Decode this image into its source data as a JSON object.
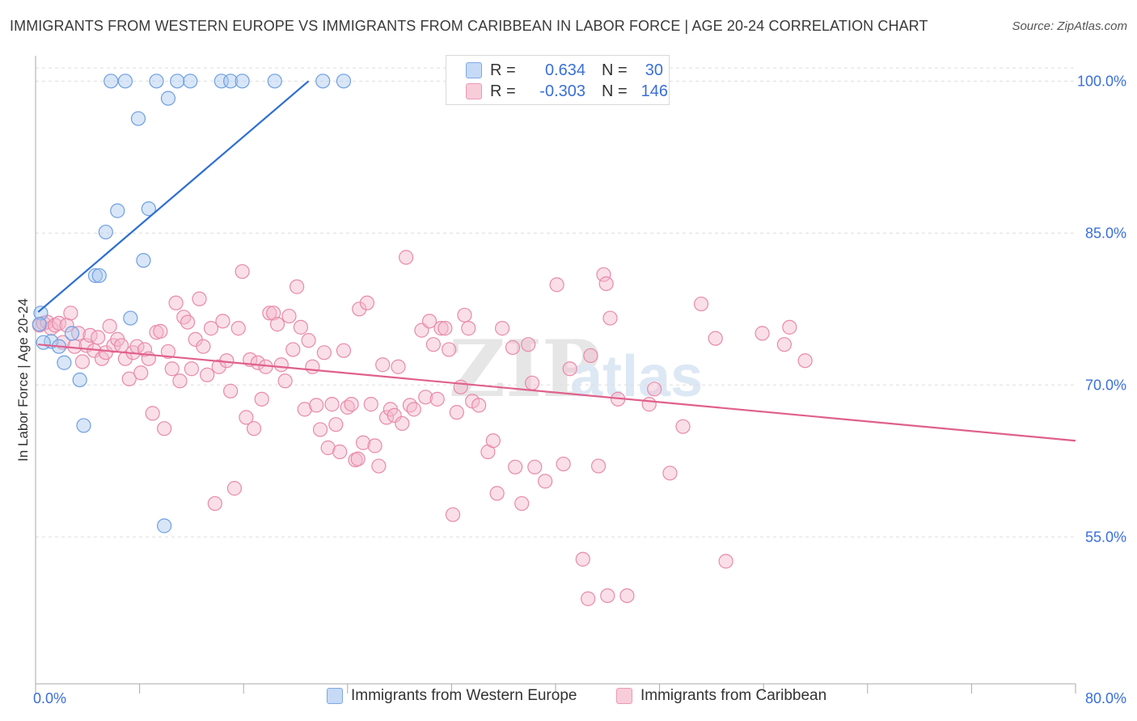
{
  "title": "IMMIGRANTS FROM WESTERN EUROPE VS IMMIGRANTS FROM CARIBBEAN IN LABOR FORCE | AGE 20-24 CORRELATION CHART",
  "source": "Source: ZipAtlas.com",
  "watermark": {
    "zip": "ZIP",
    "atlas": "atlas"
  },
  "colors": {
    "blue_fill": "#a8c8f0",
    "blue_stroke": "#6f9fe0",
    "blue_line": "#2f6fd0",
    "pink_fill": "#f5b8cc",
    "pink_stroke": "#e88aa9",
    "pink_line": "#e0608c",
    "axis_label": "#3a6fd8",
    "grid": "#dddddd"
  },
  "stats": [
    {
      "r_label": "R =",
      "r_value": "0.634",
      "n_label": "N =",
      "n_value": "30",
      "series": "blue"
    },
    {
      "r_label": "R =",
      "r_value": "-0.303",
      "n_label": "N =",
      "n_value": "146",
      "series": "pink"
    }
  ],
  "legend": [
    {
      "label": "Immigrants from Western Europe",
      "series": "blue"
    },
    {
      "label": "Immigrants from Caribbean",
      "series": "pink"
    }
  ],
  "chart_data": {
    "type": "scatter",
    "title": "IMMIGRANTS FROM WESTERN EUROPE VS IMMIGRANTS FROM CARIBBEAN IN LABOR FORCE | AGE 20-24 CORRELATION CHART",
    "xlabel": "",
    "ylabel": "In Labor Force | Age 20-24",
    "xlim": [
      0,
      80
    ],
    "ylim": [
      40.5,
      102.5
    ],
    "x_tick_labels": [
      {
        "value": 0,
        "label": "0.0%"
      },
      {
        "value": 80,
        "label": "80.0%"
      }
    ],
    "y_tick_labels": [
      {
        "value": 100,
        "label": "100.0%"
      },
      {
        "value": 85,
        "label": "85.0%"
      },
      {
        "value": 70,
        "label": "70.0%"
      },
      {
        "value": 55,
        "label": "55.0%"
      }
    ],
    "series": [
      {
        "name": "Immigrants from Western Europe",
        "color": "blue",
        "trendline": {
          "x": [
            0.2,
            21.0
          ],
          "y": [
            77.2,
            100.0
          ]
        },
        "points": [
          [
            5.8,
            100
          ],
          [
            6.9,
            100
          ],
          [
            9.3,
            100
          ],
          [
            10.9,
            100
          ],
          [
            11.9,
            100
          ],
          [
            14.3,
            100
          ],
          [
            15.0,
            100
          ],
          [
            15.9,
            100
          ],
          [
            18.4,
            100
          ],
          [
            22.1,
            100
          ],
          [
            23.7,
            100
          ],
          [
            10.2,
            98.3
          ],
          [
            7.9,
            96.3
          ],
          [
            8.7,
            87.4
          ],
          [
            6.3,
            87.2
          ],
          [
            5.4,
            85.1
          ],
          [
            4.6,
            80.8
          ],
          [
            4.9,
            80.8
          ],
          [
            8.3,
            82.3
          ],
          [
            7.3,
            76.6
          ],
          [
            0.4,
            77.1
          ],
          [
            0.3,
            76.0
          ],
          [
            1.2,
            74.3
          ],
          [
            0.6,
            74.2
          ],
          [
            1.8,
            73.8
          ],
          [
            2.8,
            75.1
          ],
          [
            2.2,
            72.2
          ],
          [
            3.4,
            70.5
          ],
          [
            3.7,
            66.0
          ],
          [
            9.9,
            56.1
          ]
        ]
      },
      {
        "name": "Immigrants from Caribbean",
        "color": "pink",
        "trendline": {
          "x": [
            0.2,
            80.0
          ],
          "y": [
            74.0,
            64.5
          ]
        },
        "points": [
          [
            0.3,
            75.9
          ],
          [
            0.6,
            76.1
          ],
          [
            0.9,
            76.2
          ],
          [
            1.2,
            75.6
          ],
          [
            1.5,
            75.9
          ],
          [
            1.8,
            76.1
          ],
          [
            2.1,
            74.2
          ],
          [
            2.4,
            75.9
          ],
          [
            2.7,
            77.1
          ],
          [
            3.0,
            73.8
          ],
          [
            3.3,
            75.1
          ],
          [
            3.6,
            72.3
          ],
          [
            3.9,
            73.9
          ],
          [
            4.2,
            74.9
          ],
          [
            4.5,
            73.4
          ],
          [
            4.8,
            74.7
          ],
          [
            5.1,
            72.6
          ],
          [
            5.4,
            73.2
          ],
          [
            5.7,
            75.8
          ],
          [
            6.0,
            73.9
          ],
          [
            6.3,
            74.5
          ],
          [
            6.6,
            73.9
          ],
          [
            6.9,
            72.6
          ],
          [
            7.2,
            70.6
          ],
          [
            7.5,
            73.2
          ],
          [
            7.8,
            73.8
          ],
          [
            8.1,
            71.2
          ],
          [
            8.4,
            73.5
          ],
          [
            8.7,
            72.6
          ],
          [
            9.0,
            67.2
          ],
          [
            9.3,
            75.2
          ],
          [
            9.6,
            75.3
          ],
          [
            9.9,
            65.7
          ],
          [
            10.2,
            73.3
          ],
          [
            10.5,
            71.6
          ],
          [
            10.8,
            78.1
          ],
          [
            11.1,
            70.4
          ],
          [
            11.4,
            76.7
          ],
          [
            11.7,
            76.2
          ],
          [
            12.0,
            71.6
          ],
          [
            12.3,
            74.5
          ],
          [
            12.6,
            78.5
          ],
          [
            12.9,
            73.8
          ],
          [
            13.2,
            71.0
          ],
          [
            13.5,
            75.6
          ],
          [
            13.8,
            58.3
          ],
          [
            14.1,
            71.8
          ],
          [
            14.4,
            76.3
          ],
          [
            14.7,
            72.4
          ],
          [
            15.0,
            69.4
          ],
          [
            15.3,
            59.8
          ],
          [
            15.6,
            75.6
          ],
          [
            15.9,
            81.2
          ],
          [
            16.2,
            66.8
          ],
          [
            16.5,
            72.5
          ],
          [
            16.8,
            65.7
          ],
          [
            17.1,
            72.2
          ],
          [
            17.4,
            68.6
          ],
          [
            17.7,
            71.8
          ],
          [
            18.0,
            77.1
          ],
          [
            18.3,
            77.1
          ],
          [
            18.6,
            76.0
          ],
          [
            18.9,
            72.0
          ],
          [
            19.2,
            70.4
          ],
          [
            19.5,
            76.8
          ],
          [
            19.8,
            73.5
          ],
          [
            20.1,
            79.7
          ],
          [
            20.4,
            75.7
          ],
          [
            20.7,
            67.6
          ],
          [
            21.0,
            74.4
          ],
          [
            21.3,
            71.8
          ],
          [
            21.6,
            68.0
          ],
          [
            21.9,
            65.6
          ],
          [
            22.2,
            73.2
          ],
          [
            22.5,
            63.8
          ],
          [
            22.8,
            68.1
          ],
          [
            23.1,
            66.1
          ],
          [
            23.4,
            63.4
          ],
          [
            23.7,
            73.4
          ],
          [
            24.0,
            67.8
          ],
          [
            24.3,
            68.1
          ],
          [
            24.6,
            62.6
          ],
          [
            24.9,
            77.5
          ],
          [
            25.2,
            64.3
          ],
          [
            25.5,
            78.1
          ],
          [
            25.8,
            68.1
          ],
          [
            26.1,
            64.0
          ],
          [
            26.4,
            62.0
          ],
          [
            26.7,
            72.0
          ],
          [
            27.0,
            66.8
          ],
          [
            27.3,
            67.6
          ],
          [
            27.6,
            67.0
          ],
          [
            27.9,
            71.8
          ],
          [
            28.2,
            66.2
          ],
          [
            28.5,
            82.6
          ],
          [
            28.8,
            68.0
          ],
          [
            29.1,
            67.6
          ],
          [
            29.7,
            75.4
          ],
          [
            30.0,
            68.8
          ],
          [
            30.3,
            76.3
          ],
          [
            30.6,
            74.0
          ],
          [
            30.9,
            68.6
          ],
          [
            31.2,
            75.6
          ],
          [
            31.5,
            75.6
          ],
          [
            31.8,
            73.5
          ],
          [
            32.1,
            57.2
          ],
          [
            32.4,
            67.3
          ],
          [
            32.7,
            69.8
          ],
          [
            33.0,
            76.9
          ],
          [
            33.3,
            75.6
          ],
          [
            33.6,
            68.4
          ],
          [
            34.1,
            68.0
          ],
          [
            34.8,
            63.4
          ],
          [
            35.2,
            64.5
          ],
          [
            35.5,
            59.3
          ],
          [
            35.9,
            75.6
          ],
          [
            36.7,
            73.7
          ],
          [
            36.9,
            61.9
          ],
          [
            37.4,
            58.3
          ],
          [
            37.9,
            74.0
          ],
          [
            38.2,
            70.2
          ],
          [
            38.4,
            61.9
          ],
          [
            39.2,
            60.5
          ],
          [
            40.1,
            79.9
          ],
          [
            40.6,
            62.2
          ],
          [
            41.1,
            71.6
          ],
          [
            42.1,
            52.8
          ],
          [
            43.3,
            62.0
          ],
          [
            42.7,
            72.9
          ],
          [
            43.7,
            80.9
          ],
          [
            44.2,
            76.6
          ],
          [
            43.9,
            80.0
          ],
          [
            45.5,
            49.2
          ],
          [
            44.8,
            68.6
          ],
          [
            47.2,
            68.1
          ],
          [
            47.6,
            69.6
          ],
          [
            48.8,
            61.3
          ],
          [
            49.8,
            65.9
          ],
          [
            51.2,
            78.0
          ],
          [
            52.3,
            74.6
          ],
          [
            53.1,
            52.6
          ],
          [
            55.9,
            75.1
          ],
          [
            57.6,
            74.0
          ],
          [
            59.2,
            72.4
          ],
          [
            58.0,
            75.7
          ],
          [
            44.0,
            49.2
          ],
          [
            42.5,
            48.9
          ],
          [
            24.8,
            62.7
          ]
        ]
      }
    ]
  }
}
